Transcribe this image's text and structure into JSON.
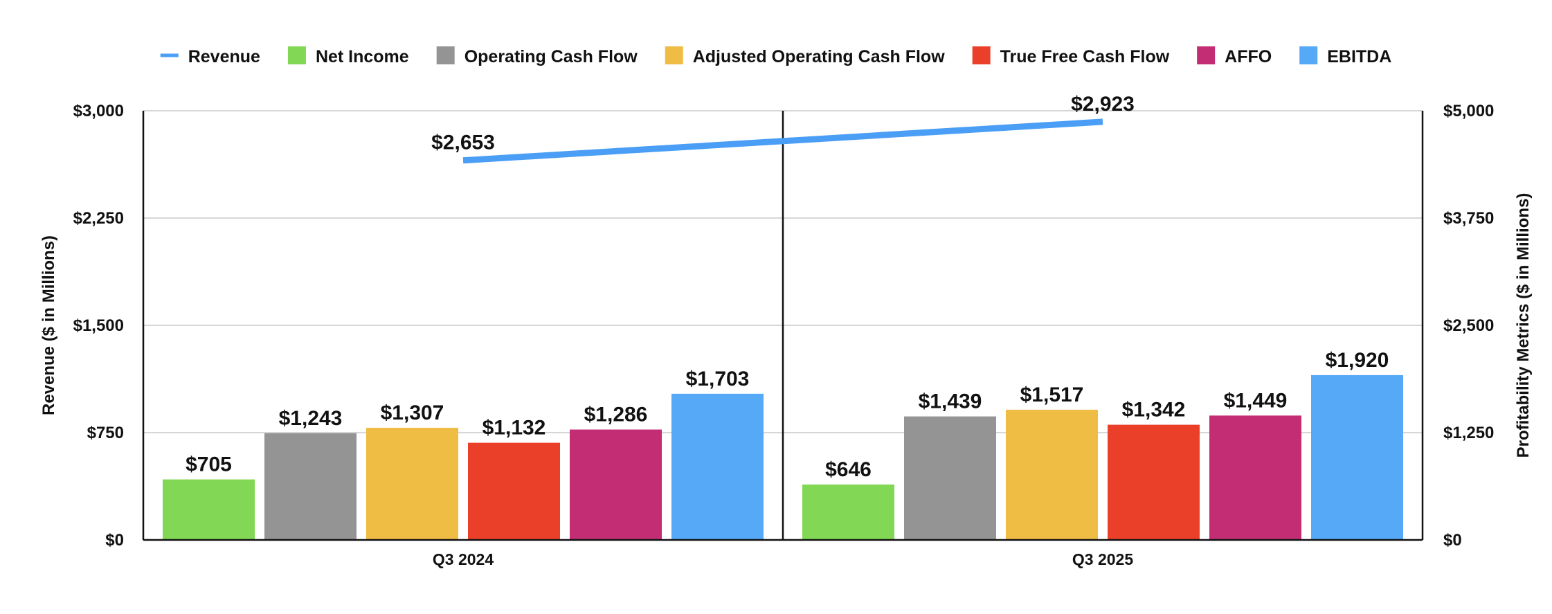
{
  "chart_data": {
    "type": "bar",
    "categories": [
      "Q3 2024",
      "Q3 2025"
    ],
    "legend_position": "top",
    "grid": true,
    "line_series": {
      "name": "Revenue",
      "axis": "left",
      "values": [
        2653,
        2923
      ],
      "labels": [
        "$2,653",
        "$2,923"
      ],
      "color": "#4a9ef5"
    },
    "series": [
      {
        "name": "Net Income",
        "color": "#82d854",
        "values": [
          705,
          646
        ],
        "labels": [
          "$705",
          "$646"
        ]
      },
      {
        "name": "Operating Cash Flow",
        "color": "#949494",
        "values": [
          1243,
          1439
        ],
        "labels": [
          "$1,243",
          "$1,439"
        ]
      },
      {
        "name": "Adjusted Operating Cash Flow",
        "color": "#f0bd44",
        "values": [
          1307,
          1517
        ],
        "labels": [
          "$1,307",
          "$1,517"
        ]
      },
      {
        "name": "True Free Cash Flow",
        "color": "#ea4029",
        "values": [
          1132,
          1342
        ],
        "labels": [
          "$1,132",
          "$1,342"
        ]
      },
      {
        "name": "AFFO",
        "color": "#c22d74",
        "values": [
          1286,
          1449
        ],
        "labels": [
          "$1,286",
          "$1,449"
        ]
      },
      {
        "name": "EBITDA",
        "color": "#55a9f7",
        "values": [
          1703,
          1920
        ],
        "labels": [
          "$1,703",
          "$1,920"
        ]
      }
    ],
    "left_axis": {
      "title": "Revenue ($ in Millions)",
      "min": 0,
      "max": 3000,
      "ticks": [
        0,
        750,
        1500,
        2250,
        3000
      ],
      "tick_labels": [
        "$0",
        "$750",
        "$1,500",
        "$2,250",
        "$3,000"
      ]
    },
    "right_axis": {
      "title": "Profitability Metrics ($ in Millions)",
      "min": 0,
      "max": 5000,
      "ticks": [
        0,
        1250,
        2500,
        3750,
        5000
      ],
      "tick_labels": [
        "$0",
        "$1,250",
        "$2,500",
        "$3,750",
        "$5,000"
      ]
    }
  }
}
